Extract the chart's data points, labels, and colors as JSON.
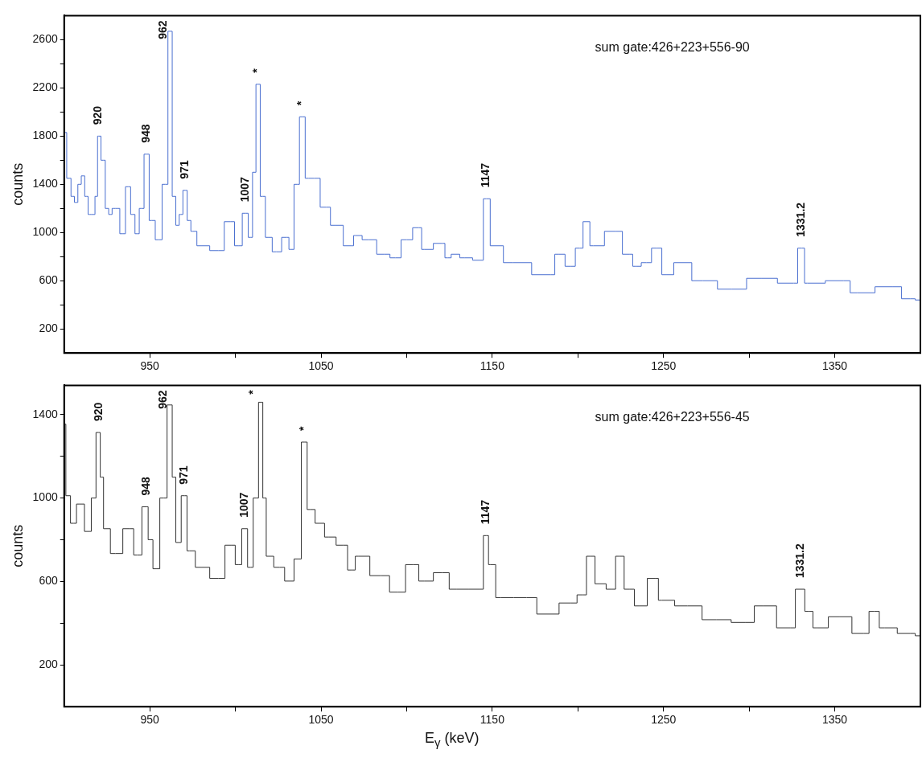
{
  "chart_data": [
    {
      "type": "step",
      "ylabel": "counts",
      "grid": false,
      "xlim": [
        900,
        1400
      ],
      "ylim": [
        0,
        2800
      ],
      "xticks": [
        950,
        {
          "value": 1000,
          "label": null
        },
        1050,
        {
          "value": 1100,
          "label": null
        },
        1150,
        {
          "value": 1200,
          "label": null
        },
        1250,
        {
          "value": 1300,
          "label": null
        },
        1350
      ],
      "yticks": [
        200,
        {
          "value": 400,
          "label": null
        },
        600,
        {
          "value": 800,
          "label": null
        },
        1000,
        {
          "value": 1200,
          "label": null
        },
        1400,
        {
          "value": 1600,
          "label": null
        },
        1800,
        {
          "value": 2000,
          "label": null
        },
        2200,
        {
          "value": 2400,
          "label": null
        },
        2600
      ],
      "series": [
        {
          "color": "#4a6fd0",
          "x": [
            900,
            903,
            905,
            907,
            909,
            911,
            913,
            915,
            917,
            919,
            920,
            923,
            925,
            927,
            929,
            931,
            934,
            937.6,
            940,
            942.7,
            945,
            948.3,
            951,
            955.4,
            959,
            962.2,
            964,
            966.4,
            968,
            970.7,
            973,
            975,
            980,
            990,
            997,
            1002,
            1006,
            1009,
            1011,
            1013,
            1016,
            1019,
            1024,
            1030,
            1032.5,
            1036,
            1038.8,
            1042.7,
            1046,
            1053,
            1058,
            1068,
            1070,
            1078,
            1087,
            1093.5,
            1100,
            1107,
            1110.5,
            1120.7,
            1124,
            1128,
            1134,
            1143,
            1146.6,
            1151,
            1162,
            1184,
            1189,
            1196,
            1201,
            1205,
            1209,
            1222,
            1230,
            1234,
            1240,
            1246,
            1252,
            1260,
            1273,
            1290,
            1307,
            1326,
            1330.7,
            1334,
            1355,
            1363,
            1384,
            1394,
            1400
          ],
          "values": [
            1830,
            1450,
            1300,
            1250,
            1400,
            1470,
            1300,
            1150,
            1150,
            1300,
            1800,
            1600,
            1200,
            1150,
            1200,
            1200,
            990,
            1380,
            1150,
            990,
            1200,
            1650,
            1100,
            940,
            1400,
            2670,
            1300,
            1060,
            1150,
            1350,
            1100,
            1010,
            890,
            850,
            1090,
            890,
            1160,
            960,
            1500,
            2230,
            1300,
            960,
            840,
            960,
            860,
            1400,
            1960,
            1450,
            1450,
            1210,
            1060,
            890,
            975,
            940,
            820,
            790,
            940,
            1040,
            860,
            910,
            790,
            820,
            790,
            770,
            1280,
            890,
            750,
            650,
            820,
            720,
            870,
            1090,
            890,
            1010,
            820,
            720,
            750,
            870,
            650,
            750,
            600,
            530,
            620,
            580,
            870,
            580,
            600,
            500,
            550,
            450,
            440
          ]
        }
      ],
      "annotations": [
        {
          "text": "920",
          "x": 920,
          "y": 1800
        },
        {
          "text": "948",
          "x": 948.3,
          "y": 1650
        },
        {
          "text": "962",
          "x": 962.2,
          "y": 2670
        },
        {
          "text": "971",
          "x": 970.7,
          "y": 1350
        },
        {
          "text": "1007",
          "x": 1006,
          "y": 1160
        },
        {
          "text": "*",
          "x": 1013,
          "y": 2230
        },
        {
          "text": "*",
          "x": 1038.8,
          "y": 1960
        },
        {
          "text": "1147",
          "x": 1146.6,
          "y": 1280
        },
        {
          "text": "1331.2",
          "x": 1330.7,
          "y": 870
        },
        "sum gate:426+223+556-90"
      ]
    },
    {
      "type": "step",
      "ylabel": "counts",
      "xlabel": "E$_{γ}$ (keV)",
      "grid": false,
      "xlim": [
        900,
        1400
      ],
      "ylim": [
        0,
        1540
      ],
      "xticks": [
        950,
        {
          "value": 1000,
          "label": null
        },
        1050,
        {
          "value": 1100,
          "label": null
        },
        1150,
        {
          "value": 1200,
          "label": null
        },
        1250,
        {
          "value": 1300,
          "label": null
        },
        1350
      ],
      "yticks": [
        200,
        {
          "value": 400,
          "label": null
        },
        600,
        {
          "value": 800,
          "label": null
        },
        1000,
        {
          "value": 1200,
          "label": null
        },
        1400
      ],
      "series": [
        {
          "color": "#333333",
          "x": [
            900,
            902,
            905.4,
            909,
            914.7,
            917,
            920.2,
            922,
            924,
            930,
            938.5,
            942.7,
            948.1,
            950,
            953.7,
            958,
            962.2,
            964,
            966.4,
            970.3,
            973.2,
            980,
            990,
            997.8,
            1002,
            1005.4,
            1008.8,
            1012,
            1015,
            1017,
            1019,
            1025.8,
            1031.7,
            1036.8,
            1040.2,
            1043.6,
            1049.5,
            1054.6,
            1063,
            1068,
            1072,
            1085,
            1095,
            1103.7,
            1110.5,
            1120.7,
            1129,
            1143,
            1146.6,
            1149,
            1155,
            1170,
            1182,
            1196,
            1203,
            1207,
            1213,
            1220,
            1224,
            1230,
            1236,
            1245,
            1249,
            1264,
            1281,
            1298,
            1308,
            1324,
            1330,
            1335,
            1339.5,
            1353,
            1367,
            1373,
            1379,
            1394,
            1400
          ],
          "values": [
            1354,
            1011,
            879,
            971,
            840,
            1000,
            1314,
            1100,
            853,
            734,
            853,
            727,
            958,
            800,
            661,
            1000,
            1446,
            1100,
            787,
            1011,
            747,
            668,
            615,
            774,
            681,
            853,
            668,
            1000,
            1459,
            1000,
            721,
            668,
            602,
            708,
            1268,
            945,
            879,
            813,
            774,
            655,
            721,
            628,
            549,
            681,
            602,
            642,
            563,
            563,
            820,
            681,
            523,
            523,
            444,
            497,
            536,
            721,
            589,
            563,
            721,
            563,
            483,
            615,
            510,
            483,
            417,
            404,
            483,
            378,
            563,
            457,
            378,
            431,
            351,
            457,
            378,
            351,
            340
          ]
        }
      ],
      "annotations": [
        {
          "text": "920",
          "x": 920.2,
          "y": 1314
        },
        {
          "text": "948",
          "x": 948.1,
          "y": 958
        },
        {
          "text": "962",
          "x": 962.2,
          "y": 1446
        },
        {
          "text": "971",
          "x": 970.3,
          "y": 1011
        },
        {
          "text": "1007",
          "x": 1005.4,
          "y": 853
        },
        {
          "text": "*",
          "x": 1015,
          "y": 1459
        },
        {
          "text": "*",
          "x": 1040.2,
          "y": 1268
        },
        {
          "text": "1147",
          "x": 1146.6,
          "y": 820
        },
        {
          "text": "1331.2",
          "x": 1330,
          "y": 563
        },
        "sum gate:426+223+556-45"
      ]
    }
  ]
}
